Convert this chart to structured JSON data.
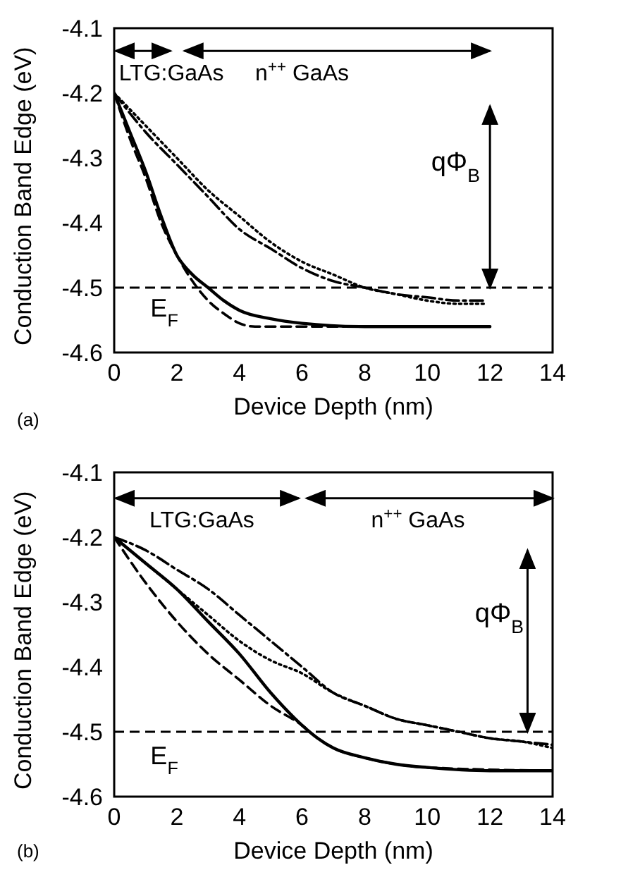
{
  "chart_data": [
    {
      "type": "line",
      "xlabel": "Device Depth (nm)",
      "ylabel": "Conduction Band Edge (eV)",
      "xlim": [
        0,
        14
      ],
      "xticks": [
        0,
        2,
        4,
        6,
        8,
        10,
        12,
        14
      ],
      "ylim": [
        -4.6,
        -4.1
      ],
      "yticks": [
        -4.6,
        -4.5,
        -4.4,
        -4.3,
        -4.2,
        -4.1
      ],
      "marker": "none",
      "series": [
        {
          "color": "#000000",
          "line_style": "solid",
          "x": [
            0,
            0.5,
            1,
            1.5,
            2,
            2.5,
            3,
            3.5,
            4,
            5,
            6,
            8,
            10,
            12
          ],
          "values": [
            -4.2,
            -4.26,
            -4.32,
            -4.39,
            -4.45,
            -4.48,
            -4.5,
            -4.52,
            -4.535,
            -4.548,
            -4.555,
            -4.56,
            -4.56,
            -4.56
          ]
        },
        {
          "color": "#000000",
          "line_style": "dashed",
          "x": [
            0,
            0.5,
            1,
            1.5,
            2,
            2.5,
            3,
            3.5,
            4,
            4.5,
            6,
            8,
            10,
            12
          ],
          "values": [
            -4.2,
            -4.27,
            -4.33,
            -4.4,
            -4.45,
            -4.49,
            -4.52,
            -4.54,
            -4.555,
            -4.56,
            -4.56,
            -4.56,
            -4.56,
            -4.56
          ]
        },
        {
          "color": "#000000",
          "line_style": "dotted",
          "x": [
            0,
            1,
            2,
            3,
            4,
            5,
            6,
            7,
            8,
            9,
            10,
            11,
            11.8
          ],
          "values": [
            -4.2,
            -4.25,
            -4.3,
            -4.35,
            -4.39,
            -4.43,
            -4.46,
            -4.48,
            -4.5,
            -4.51,
            -4.52,
            -4.525,
            -4.525
          ]
        },
        {
          "color": "#000000",
          "line_style": "dashdot",
          "x": [
            0,
            1,
            2,
            3,
            4,
            5,
            6,
            7,
            8,
            9,
            10,
            11,
            11.8
          ],
          "values": [
            -4.2,
            -4.26,
            -4.31,
            -4.36,
            -4.41,
            -4.44,
            -4.47,
            -4.49,
            -4.5,
            -4.51,
            -4.515,
            -4.52,
            -4.52
          ]
        }
      ],
      "ref_lines": [
        {
          "axis": "y",
          "value": -4.5,
          "label": "E$_{F}$",
          "color": "#000000",
          "line_style": "dashed"
        }
      ],
      "annotations": [
        "LTG:GaAs",
        "n$^{++}$ GaAs",
        "qΦ$_{B}$",
        "(a)"
      ]
    },
    {
      "type": "line",
      "xlabel": "Device Depth (nm)",
      "ylabel": "Conduction Band Edge (eV)",
      "xlim": [
        0,
        14
      ],
      "xticks": [
        0,
        2,
        4,
        6,
        8,
        10,
        12,
        14
      ],
      "ylim": [
        -4.6,
        -4.1
      ],
      "yticks": [
        -4.6,
        -4.5,
        -4.4,
        -4.3,
        -4.2,
        -4.1
      ],
      "marker": "none",
      "series": [
        {
          "color": "#000000",
          "line_style": "solid",
          "x": [
            0,
            1,
            2,
            3,
            4,
            5,
            6,
            6.5,
            7,
            8,
            9,
            10,
            12,
            14
          ],
          "values": [
            -4.2,
            -4.24,
            -4.28,
            -4.33,
            -4.38,
            -4.44,
            -4.49,
            -4.51,
            -4.525,
            -4.54,
            -4.55,
            -4.555,
            -4.56,
            -4.56
          ]
        },
        {
          "color": "#000000",
          "line_style": "dashed",
          "x": [
            0,
            1,
            2,
            3,
            4,
            5,
            6,
            6.5,
            7,
            8,
            10,
            14
          ],
          "values": [
            -4.2,
            -4.27,
            -4.33,
            -4.38,
            -4.42,
            -4.46,
            -4.49,
            -4.51,
            -4.525,
            -4.54,
            -4.555,
            -4.56
          ]
        },
        {
          "color": "#000000",
          "line_style": "dotted",
          "x": [
            0,
            1,
            2,
            3,
            4,
            5,
            6,
            7,
            8,
            9,
            10,
            11,
            12,
            13,
            14
          ],
          "values": [
            -4.2,
            -4.24,
            -4.28,
            -4.32,
            -4.36,
            -4.39,
            -4.41,
            -4.44,
            -4.46,
            -4.48,
            -4.49,
            -4.5,
            -4.51,
            -4.515,
            -4.525
          ]
        },
        {
          "color": "#000000",
          "line_style": "dashdot",
          "x": [
            0,
            1,
            2,
            3,
            4,
            5,
            6,
            7,
            8,
            9,
            10,
            11,
            12,
            13,
            14
          ],
          "values": [
            -4.2,
            -4.22,
            -4.25,
            -4.28,
            -4.32,
            -4.36,
            -4.4,
            -4.44,
            -4.46,
            -4.48,
            -4.49,
            -4.5,
            -4.51,
            -4.515,
            -4.52
          ]
        }
      ],
      "ref_lines": [
        {
          "axis": "y",
          "value": -4.5,
          "label": "E$_{F}$",
          "color": "#000000",
          "line_style": "dashed"
        }
      ],
      "annotations": [
        "LTG:GaAs",
        "n$^{++}$ GaAs",
        "qΦ$_{B}$",
        "(b)"
      ]
    }
  ]
}
